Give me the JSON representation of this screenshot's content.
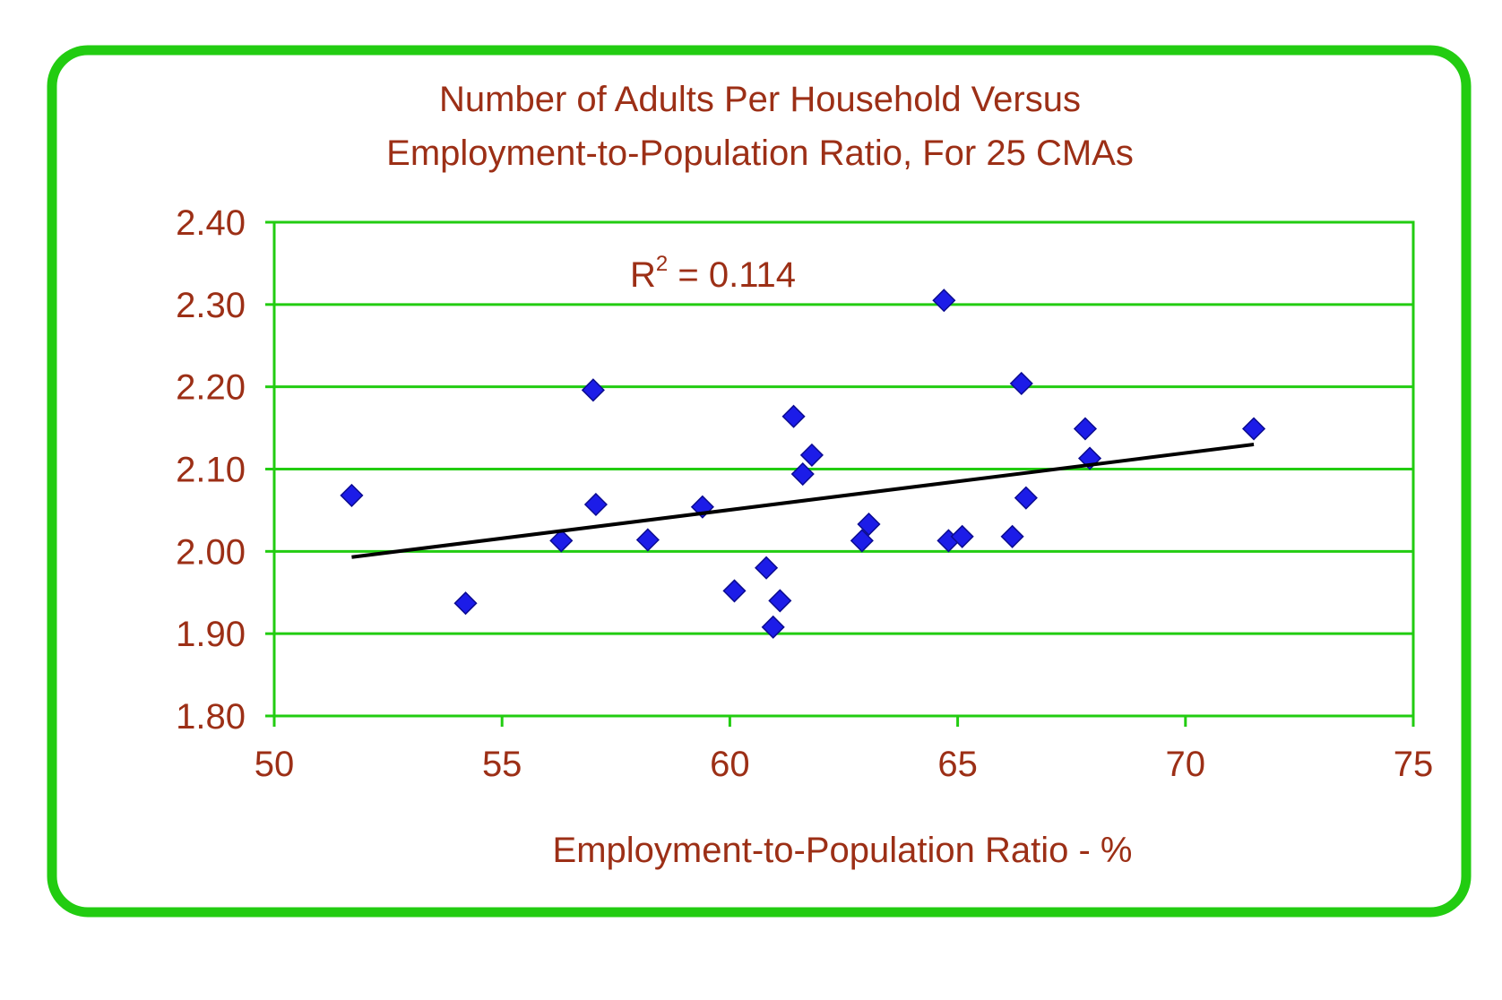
{
  "chart_data": {
    "type": "scatter",
    "title": [
      "Number of Adults Per Household Versus",
      "Employment-to-Population Ratio, For 25 CMAs"
    ],
    "x_label": "Employment-to-Population Ratio - %",
    "annotation": [
      "R",
      "2",
      " = 0.114"
    ],
    "color": "#1c1ce8",
    "x": [
      51.7,
      54.2,
      56.3,
      57.0,
      57.06,
      58.2,
      59.4,
      60.1,
      60.8,
      60.95,
      61.1,
      61.4,
      61.6,
      61.8,
      62.9,
      63.05,
      64.7,
      64.8,
      65.1,
      66.2,
      66.4,
      66.5,
      67.8,
      67.9,
      71.5
    ],
    "values": [
      2.068,
      1.937,
      2.013,
      2.196,
      2.057,
      2.014,
      2.054,
      1.952,
      1.98,
      1.908,
      1.94,
      2.164,
      2.094,
      2.117,
      2.013,
      2.033,
      2.305,
      2.013,
      2.018,
      2.018,
      2.204,
      2.065,
      2.149,
      2.113,
      2.149
    ],
    "trendline": {
      "x": [
        51.7,
        71.5
      ],
      "values": [
        1.993,
        2.13
      ],
      "color": "#000000"
    },
    "xlim": [
      50,
      75
    ],
    "xticks": [
      50,
      55,
      60,
      65,
      70,
      75
    ],
    "ylim": [
      1.8,
      2.4
    ],
    "yticks": [
      {
        "value": 1.8,
        "label": "1.80"
      },
      {
        "value": 1.9,
        "label": "1.90"
      },
      {
        "value": 2.0,
        "label": "2.00"
      },
      {
        "value": 2.1,
        "label": "2.10"
      },
      {
        "value": 2.2,
        "label": "2.20"
      },
      {
        "value": 2.3,
        "label": "2.30"
      },
      {
        "value": 2.4,
        "label": "2.40"
      }
    ],
    "grid": true
  }
}
